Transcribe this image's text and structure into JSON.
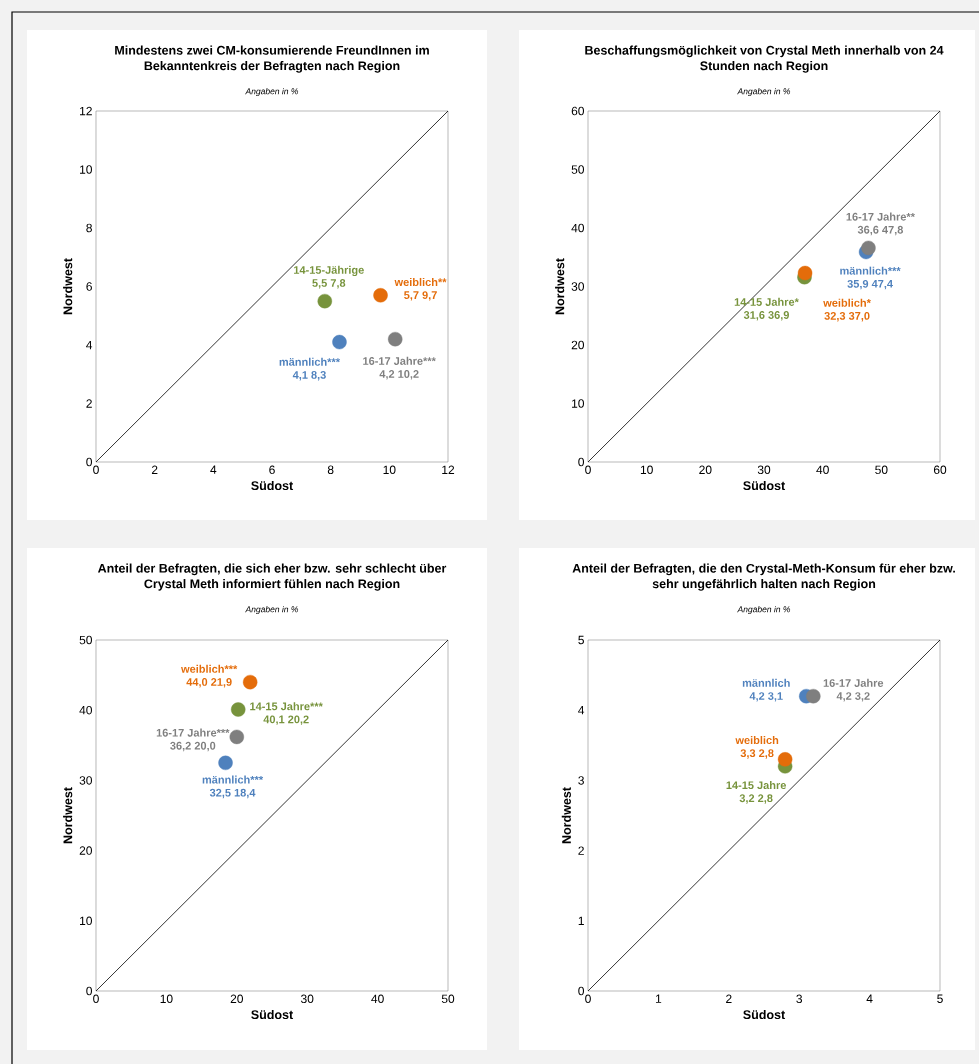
{
  "chart_data": [
    {
      "type": "scatter",
      "title": "Mindestens zwei CM-konsumierende FreundInnen im Bekanntenkreis der Befragten nach Region",
      "subtitle": "Angaben in %",
      "xlabel": "Südost",
      "ylabel": "Nordwest",
      "xlim": [
        0,
        12
      ],
      "ylim": [
        0,
        12
      ],
      "xticks": [
        0,
        2,
        4,
        6,
        8,
        10,
        12
      ],
      "yticks": [
        0,
        2,
        4,
        6,
        8,
        10,
        12
      ],
      "series": [
        {
          "type": "line",
          "marker": "none",
          "color": "#000000",
          "x": [
            0,
            12
          ],
          "values": [
            0,
            12
          ]
        },
        {
          "name": "14-15-Jährige",
          "marker": "circle",
          "color": "#77933c",
          "x": [
            7.8
          ],
          "values": [
            5.5
          ],
          "value_labels": [
            "5,5   7,8"
          ]
        },
        {
          "name": "weiblich**",
          "marker": "circle",
          "color": "#e46c0a",
          "x": [
            9.7
          ],
          "values": [
            5.7
          ],
          "value_labels": [
            "5,7   9,7"
          ]
        },
        {
          "name": "männlich***",
          "marker": "circle",
          "color": "#4f81bd",
          "x": [
            8.3
          ],
          "values": [
            4.1
          ],
          "value_labels": [
            "4,1   8,3"
          ]
        },
        {
          "name": "16-17 Jahre***",
          "marker": "circle",
          "color": "#7f7f7f",
          "x": [
            10.2
          ],
          "values": [
            4.2
          ],
          "value_labels": [
            "4,2   10,2"
          ]
        }
      ]
    },
    {
      "type": "scatter",
      "title": "Beschaffungsmöglichkeit von Crystal Meth innerhalb von 24 Stunden nach Region",
      "subtitle": "Angaben in %",
      "xlabel": "Südost",
      "ylabel": "Nordwest",
      "xlim": [
        0,
        60
      ],
      "ylim": [
        0,
        60
      ],
      "xticks": [
        0,
        10,
        20,
        30,
        40,
        50,
        60
      ],
      "yticks": [
        0,
        10,
        20,
        30,
        40,
        50,
        60
      ],
      "series": [
        {
          "type": "line",
          "marker": "none",
          "color": "#000000",
          "x": [
            0,
            60
          ],
          "values": [
            0,
            60
          ]
        },
        {
          "name": "14-15 Jahre*",
          "marker": "circle",
          "color": "#77933c",
          "x": [
            36.9
          ],
          "values": [
            31.6
          ],
          "value_labels": [
            "31,6   36,9"
          ]
        },
        {
          "name": "weiblich*",
          "marker": "circle",
          "color": "#e46c0a",
          "x": [
            37.0
          ],
          "values": [
            32.3
          ],
          "value_labels": [
            "32,3   37,0"
          ]
        },
        {
          "name": "männlich***",
          "marker": "circle",
          "color": "#4f81bd",
          "x": [
            47.4
          ],
          "values": [
            35.9
          ],
          "value_labels": [
            "35,9   47,4"
          ]
        },
        {
          "name": "16-17 Jahre**",
          "marker": "circle",
          "color": "#7f7f7f",
          "x": [
            47.8
          ],
          "values": [
            36.6
          ],
          "value_labels": [
            "36,6   47,8"
          ]
        }
      ]
    },
    {
      "type": "scatter",
      "title": "Anteil der Befragten, die sich eher bzw. sehr schlecht über Crystal Meth informiert fühlen nach Region",
      "subtitle": "Angaben in %",
      "xlabel": "Südost",
      "ylabel": "Nordwest",
      "xlim": [
        0,
        50
      ],
      "ylim": [
        0,
        50
      ],
      "xticks": [
        0,
        10,
        20,
        30,
        40,
        50
      ],
      "yticks": [
        0,
        10,
        20,
        30,
        40,
        50
      ],
      "series": [
        {
          "type": "line",
          "marker": "none",
          "color": "#000000",
          "x": [
            0,
            50
          ],
          "values": [
            0,
            50
          ]
        },
        {
          "name": "14-15 Jahre***",
          "marker": "circle",
          "color": "#77933c",
          "x": [
            20.2
          ],
          "values": [
            40.1
          ],
          "value_labels": [
            "40,1   20,2"
          ]
        },
        {
          "name": "weiblich***",
          "marker": "circle",
          "color": "#e46c0a",
          "x": [
            21.9
          ],
          "values": [
            44.0
          ],
          "value_labels": [
            "44,0   21,9"
          ]
        },
        {
          "name": "männlich***",
          "marker": "circle",
          "color": "#4f81bd",
          "x": [
            18.4
          ],
          "values": [
            32.5
          ],
          "value_labels": [
            "32,5   18,4"
          ]
        },
        {
          "name": "16-17 Jahre***",
          "marker": "circle",
          "color": "#7f7f7f",
          "x": [
            20.0
          ],
          "values": [
            36.2
          ],
          "value_labels": [
            "36,2   20,0"
          ]
        }
      ]
    },
    {
      "type": "scatter",
      "title": "Anteil der Befragten, die den Crystal-Meth-Konsum für eher bzw. sehr ungefährlich halten nach Region",
      "subtitle": "Angaben in %",
      "xlabel": "Südost",
      "ylabel": "Nordwest",
      "xlim": [
        0,
        5
      ],
      "ylim": [
        0,
        5
      ],
      "xticks": [
        0,
        1,
        2,
        3,
        4,
        5
      ],
      "yticks": [
        0,
        1,
        2,
        3,
        4,
        5
      ],
      "series": [
        {
          "type": "line",
          "marker": "none",
          "color": "#000000",
          "x": [
            0,
            5
          ],
          "values": [
            0,
            5
          ]
        },
        {
          "name": "14-15 Jahre",
          "marker": "circle",
          "color": "#77933c",
          "x": [
            2.8
          ],
          "values": [
            3.2
          ],
          "value_labels": [
            "3,2   2,8"
          ]
        },
        {
          "name": "weiblich",
          "marker": "circle",
          "color": "#e46c0a",
          "x": [
            2.8
          ],
          "values": [
            3.3
          ],
          "value_labels": [
            "3,3   2,8"
          ]
        },
        {
          "name": "männlich",
          "marker": "circle",
          "color": "#4f81bd",
          "x": [
            3.1
          ],
          "values": [
            4.2
          ],
          "value_labels": [
            "4,2   3,1"
          ]
        },
        {
          "name": "16-17 Jahre",
          "marker": "circle",
          "color": "#7f7f7f",
          "x": [
            3.2
          ],
          "values": [
            4.2
          ],
          "value_labels": [
            "4,2   3,2"
          ]
        }
      ]
    }
  ]
}
